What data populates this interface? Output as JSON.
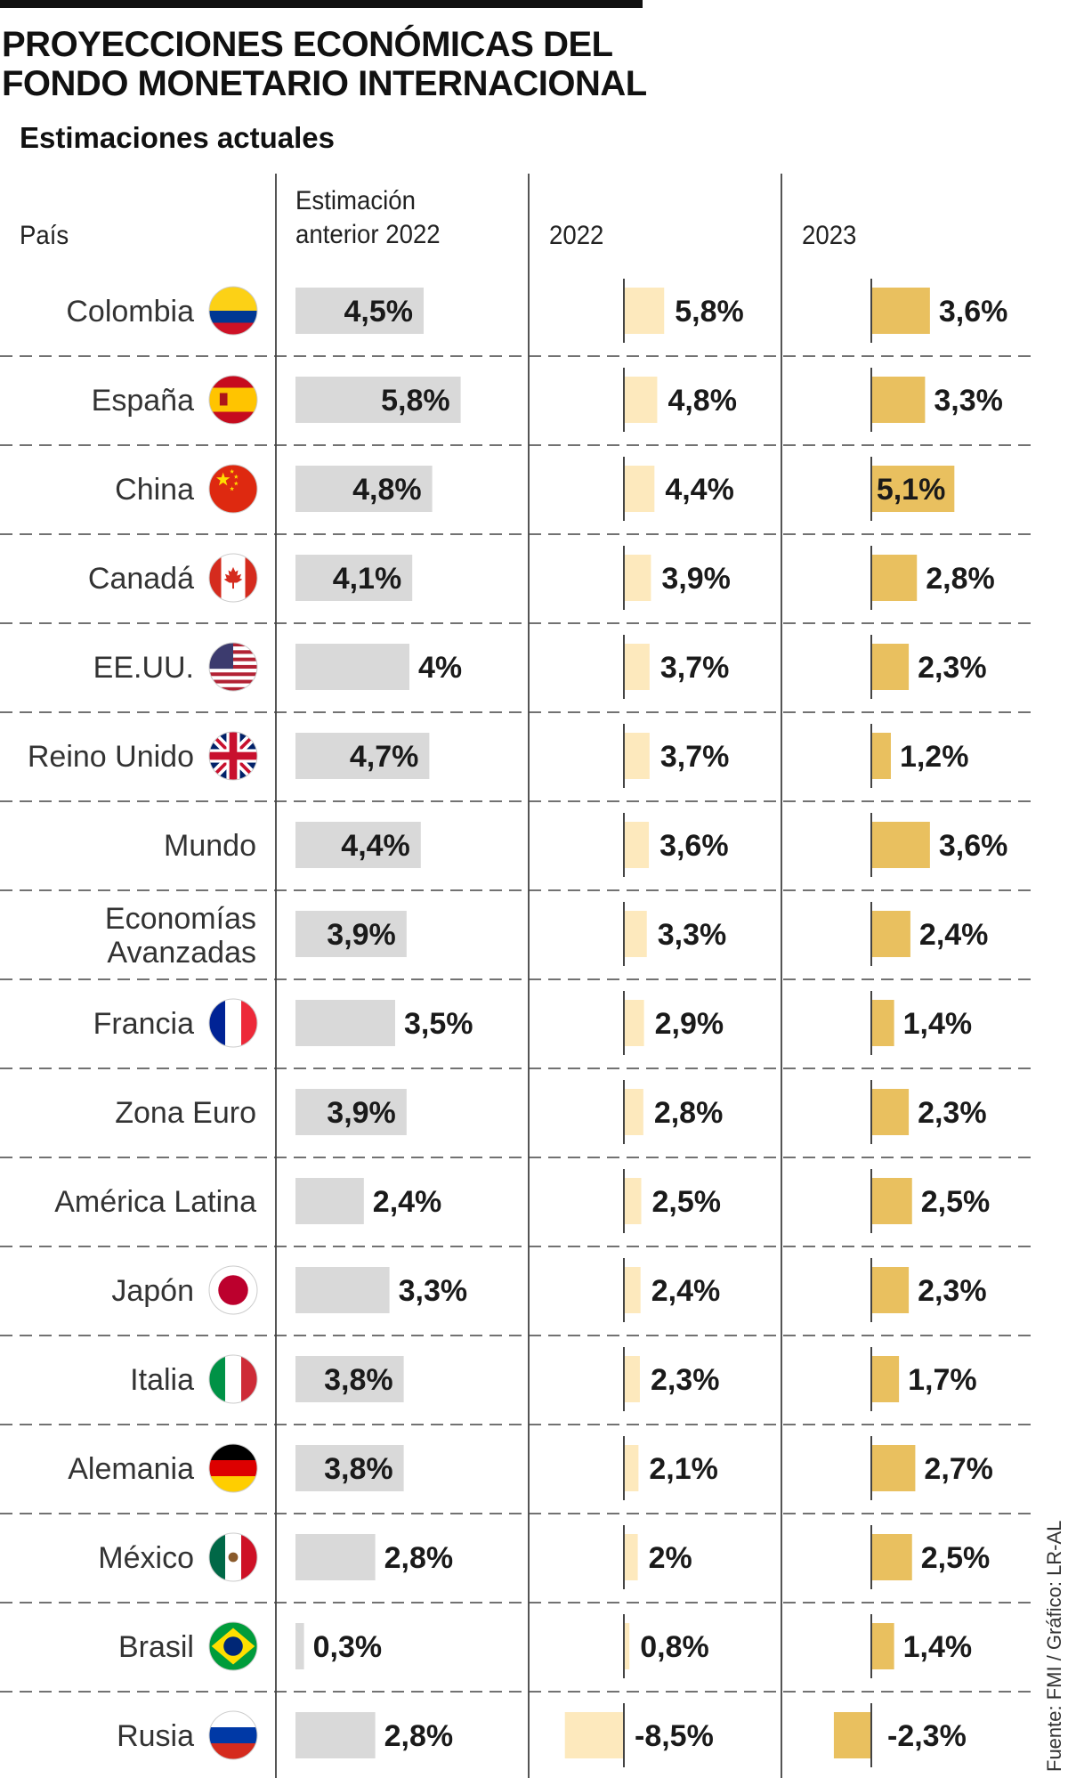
{
  "header": {
    "title_line1": "PROYECCIONES ECONÓMICAS DEL",
    "title_line2": "FONDO MONETARIO INTERNACIONAL",
    "subtitle": "Estimaciones actuales",
    "col_country": "País",
    "col_prev_line1": "Estimación",
    "col_prev_line2": "anterior 2022",
    "col_2022": "2022",
    "col_2023": "2023"
  },
  "source": "Fuente: FMI / Gráfico: LR-AL",
  "colors": {
    "prev_bar": "#d9d9d9",
    "bar_2022": "#fde9bd",
    "bar_2023": "#e9c05f",
    "rule": "#444444"
  },
  "chart_data": {
    "type": "bar",
    "title": "PROYECCIONES ECONÓMICAS DEL FONDO MONETARIO INTERNACIONAL",
    "subtitle": "Estimaciones actuales",
    "categories": [
      "Colombia",
      "España",
      "China",
      "Canadá",
      "EE.UU.",
      "Reino Unido",
      "Mundo",
      "Economías Avanzadas",
      "Francia",
      "Zona Euro",
      "América Latina",
      "Japón",
      "Italia",
      "Alemania",
      "México",
      "Brasil",
      "Rusia"
    ],
    "labels": [
      [
        "Colombia"
      ],
      [
        "España"
      ],
      [
        "China"
      ],
      [
        "Canadá"
      ],
      [
        "EE.UU."
      ],
      [
        "Reino Unido"
      ],
      [
        "Mundo"
      ],
      [
        "Economías",
        "Avanzadas"
      ],
      [
        "Francia"
      ],
      [
        "Zona Euro"
      ],
      [
        "América Latina"
      ],
      [
        "Japón"
      ],
      [
        "Italia"
      ],
      [
        "Alemania"
      ],
      [
        "México"
      ],
      [
        "Brasil"
      ],
      [
        "Rusia"
      ]
    ],
    "flags": [
      "colombia-flag",
      "spain-flag",
      "china-flag",
      "canada-flag",
      "usa-flag",
      "uk-flag",
      "",
      "",
      "france-flag",
      "",
      "",
      "japan-flag",
      "italy-flag",
      "germany-flag",
      "mexico-flag",
      "brazil-flag",
      "russia-flag"
    ],
    "series": [
      {
        "name": "Estimación anterior 2022",
        "values": [
          4.5,
          5.8,
          4.8,
          4.1,
          4.0,
          4.7,
          4.4,
          3.9,
          3.5,
          3.9,
          2.4,
          3.3,
          3.8,
          3.8,
          2.8,
          0.3,
          2.8
        ],
        "labels": [
          "4,5%",
          "5,8%",
          "4,8%",
          "4,1%",
          "4%",
          "4,7%",
          "4,4%",
          "3,9%",
          "3,5%",
          "3,9%",
          "2,4%",
          "3,3%",
          "3,8%",
          "3,8%",
          "2,8%",
          "0,3%",
          "2,8%"
        ],
        "inside": [
          true,
          true,
          true,
          true,
          false,
          true,
          true,
          true,
          false,
          true,
          false,
          false,
          true,
          true,
          false,
          false,
          false
        ]
      },
      {
        "name": "2022",
        "values": [
          5.8,
          4.8,
          4.4,
          3.9,
          3.7,
          3.7,
          3.6,
          3.3,
          2.9,
          2.8,
          2.5,
          2.4,
          2.3,
          2.1,
          2.0,
          0.8,
          -8.5
        ],
        "labels": [
          "5,8%",
          "4,8%",
          "4,4%",
          "3,9%",
          "3,7%",
          "3,7%",
          "3,6%",
          "3,3%",
          "2,9%",
          "2,8%",
          "2,5%",
          "2,4%",
          "2,3%",
          "2,1%",
          "2%",
          "0,8%",
          "-8,5%"
        ]
      },
      {
        "name": "2023",
        "values": [
          3.6,
          3.3,
          5.1,
          2.8,
          2.3,
          1.2,
          3.6,
          2.4,
          1.4,
          2.3,
          2.5,
          2.3,
          1.7,
          2.7,
          2.5,
          1.4,
          -2.3
        ],
        "labels": [
          "3,6%",
          "3,3%",
          "5,1%",
          "2,8%",
          "2,3%",
          "1,2%",
          "3,6%",
          "2,4%",
          "1,4%",
          "2,3%",
          "2,5%",
          "2,3%",
          "1,7%",
          "2,7%",
          "2,5%",
          "1,4%",
          "-2,3%"
        ],
        "inside": [
          false,
          false,
          true,
          false,
          false,
          false,
          false,
          false,
          false,
          false,
          false,
          false,
          false,
          false,
          false,
          false,
          false
        ]
      }
    ],
    "xlabel": "",
    "ylabel": ""
  }
}
